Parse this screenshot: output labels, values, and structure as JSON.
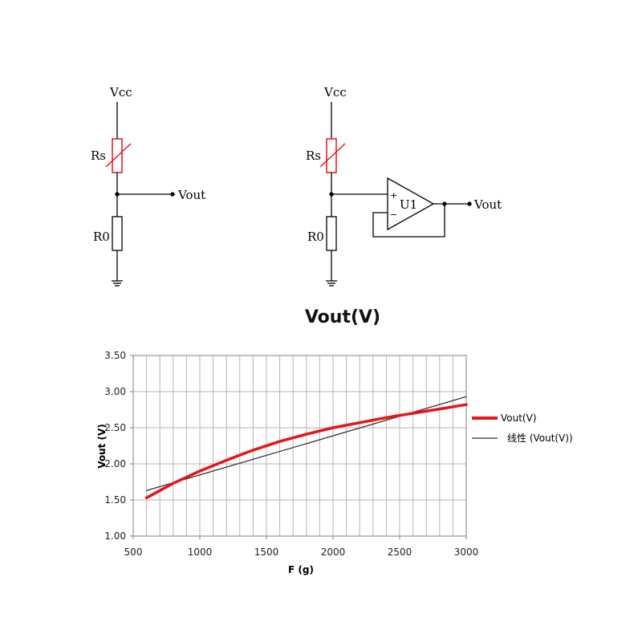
{
  "circuits": {
    "left": {
      "vcc": "Vcc",
      "rs": "Rs",
      "r0": "R0",
      "vout": "Vout"
    },
    "right": {
      "vcc": "Vcc",
      "rs": "Rs",
      "r0": "R0",
      "vout": "Vout",
      "opamp": "U1",
      "plus": "+",
      "minus": "−"
    }
  },
  "chart_data": {
    "type": "line",
    "title": "Vout(V)",
    "xlabel": "F (g)",
    "ylabel": "Vout (V)",
    "xlim": [
      500,
      3000
    ],
    "ylim": [
      1.0,
      3.5
    ],
    "xticks": [
      500,
      1000,
      1500,
      2000,
      2500,
      3000
    ],
    "yticks": [
      1.0,
      1.5,
      2.0,
      2.5,
      3.0,
      3.5
    ],
    "ytick_labels": [
      "1.00",
      "1.50",
      "2.00",
      "2.50",
      "3.00",
      "3.50"
    ],
    "grid": true,
    "legend_position": "right",
    "series": [
      {
        "name": "Vout(V)",
        "color": "#e8141b",
        "x": [
          600,
          800,
          1000,
          1200,
          1400,
          1600,
          1800,
          2000,
          2200,
          2400,
          2600,
          2800,
          3000
        ],
        "y": [
          1.53,
          1.73,
          1.9,
          2.05,
          2.19,
          2.31,
          2.41,
          2.5,
          2.57,
          2.64,
          2.7,
          2.76,
          2.82
        ]
      },
      {
        "name": "线性 (Vout(V))",
        "color": "#333333",
        "x": [
          600,
          3000
        ],
        "y": [
          1.63,
          2.93
        ]
      }
    ]
  }
}
